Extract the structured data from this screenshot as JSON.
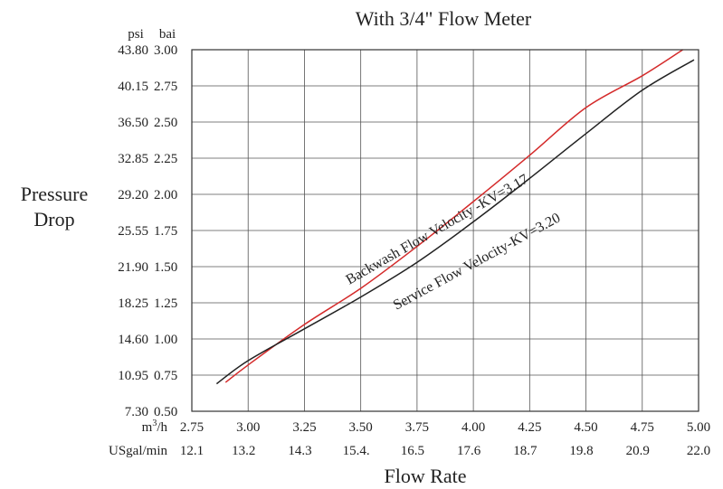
{
  "chart_data": {
    "type": "line",
    "title": "With 3/4\" Flow Meter",
    "ylabel_lines": [
      "Pressure",
      "Drop"
    ],
    "xlabel": "Flow Rate",
    "unit_labels": {
      "psi": "psi",
      "bar": "bai",
      "m3h_base": "m",
      "m3h_sup": "3",
      "m3h_tail": "/h",
      "usgal": "USgal/min"
    },
    "xlim": [
      2.75,
      5.0
    ],
    "ylim": [
      0.5,
      3.0
    ],
    "grid": true,
    "x_ticks": [
      {
        "m3h": "2.75",
        "usgal": "12.1"
      },
      {
        "m3h": "3.00",
        "usgal": "13.2"
      },
      {
        "m3h": "3.25",
        "usgal": "14.3"
      },
      {
        "m3h": "3.50",
        "usgal": "15.4."
      },
      {
        "m3h": "3.75",
        "usgal": "16.5"
      },
      {
        "m3h": "4.00",
        "usgal": "17.6"
      },
      {
        "m3h": "4.25",
        "usgal": "18.7"
      },
      {
        "m3h": "4.50",
        "usgal": "19.8"
      },
      {
        "m3h": "4.75",
        "usgal": "20.9"
      },
      {
        "m3h": "5.00",
        "usgal": "22.0"
      }
    ],
    "y_ticks": [
      {
        "psi": "43.80",
        "bar": "3.00"
      },
      {
        "psi": "40.15",
        "bar": "2.75"
      },
      {
        "psi": "36.50",
        "bar": "2.50"
      },
      {
        "psi": "32.85",
        "bar": "2.25"
      },
      {
        "psi": "29.20",
        "bar": "2.00"
      },
      {
        "psi": "25.55",
        "bar": "1.75"
      },
      {
        "psi": "21.90",
        "bar": "1.50"
      },
      {
        "psi": "18.25",
        "bar": "1.25"
      },
      {
        "psi": "14.60",
        "bar": "1.00"
      },
      {
        "psi": "10.95",
        "bar": "0.75"
      },
      {
        "psi": "7.30",
        "bar": "0.50"
      }
    ],
    "series": [
      {
        "name": "Backwash Flow Velocity -KV=3.17",
        "color": "#d42a2a",
        "x": [
          2.9,
          3.0,
          3.25,
          3.5,
          3.75,
          4.0,
          4.25,
          4.5,
          4.75,
          4.93
        ],
        "y": [
          0.7,
          0.82,
          1.1,
          1.35,
          1.64,
          1.95,
          2.27,
          2.6,
          2.82,
          3.0
        ]
      },
      {
        "name": "Service Flow Velocity-KV=3.20",
        "color": "#222222",
        "x": [
          2.86,
          3.0,
          3.25,
          3.5,
          3.75,
          4.0,
          4.25,
          4.5,
          4.75,
          4.98
        ],
        "y": [
          0.69,
          0.85,
          1.07,
          1.29,
          1.53,
          1.81,
          2.11,
          2.42,
          2.72,
          2.93
        ]
      }
    ]
  }
}
